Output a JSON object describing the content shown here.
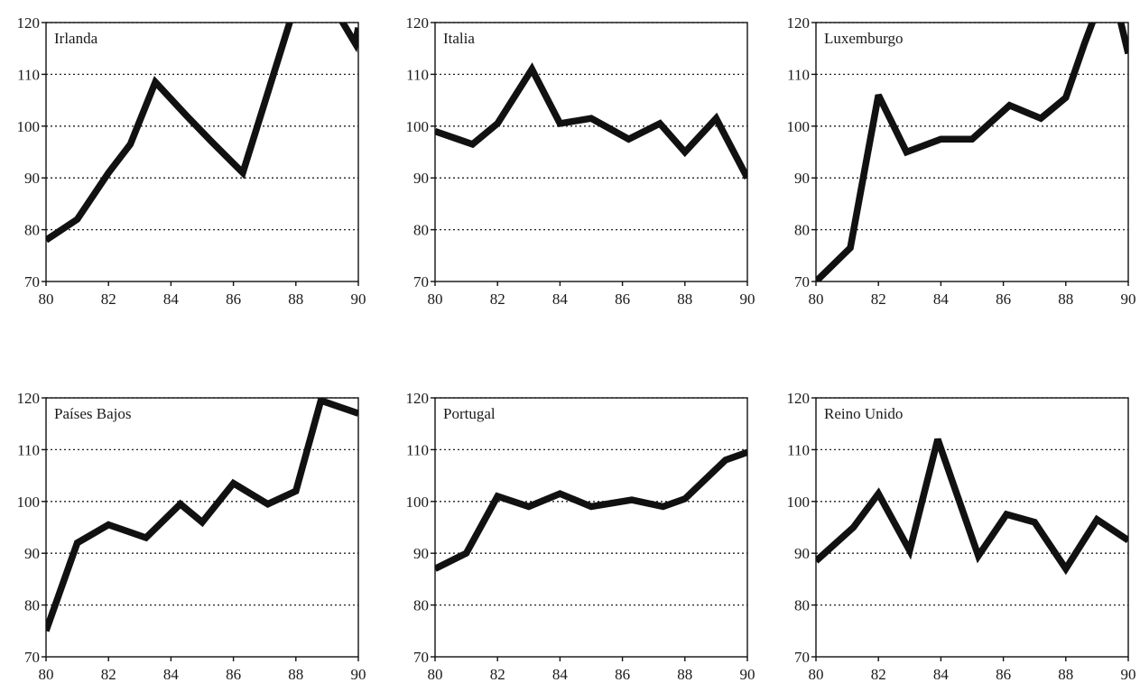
{
  "chart_data": [
    {
      "type": "line",
      "title": "Irlanda",
      "x": [
        80,
        81,
        82,
        82.7,
        83.5,
        84.5,
        85.3,
        86.3,
        87,
        87.8,
        88.3,
        89,
        89.5,
        89.9,
        90
      ],
      "values": [
        78,
        82,
        91,
        96.5,
        108.5,
        102,
        97,
        91,
        104.5,
        120,
        125,
        125,
        120,
        116,
        119
      ],
      "xticks": [
        "80",
        "82",
        "84",
        "86",
        "88",
        "90"
      ],
      "yticks": [
        "70",
        "80",
        "90",
        "100",
        "110",
        "120"
      ],
      "xlim": [
        80,
        90
      ],
      "ylim": [
        70,
        120
      ],
      "grid": "dotted-horizontal"
    },
    {
      "type": "line",
      "title": "Italia",
      "x": [
        80,
        81.2,
        82,
        83.1,
        84,
        85,
        86.2,
        87.2,
        88,
        89,
        90
      ],
      "values": [
        99,
        96.5,
        100.5,
        111,
        100.5,
        101.5,
        97.5,
        100.5,
        95,
        101.5,
        90
      ],
      "xticks": [
        "80",
        "82",
        "84",
        "86",
        "88",
        "90"
      ],
      "yticks": [
        "70",
        "80",
        "90",
        "100",
        "110",
        "120"
      ],
      "xlim": [
        80,
        90
      ],
      "ylim": [
        70,
        120
      ],
      "grid": "dotted-horizontal"
    },
    {
      "type": "line",
      "title": "Luxemburgo",
      "x": [
        80,
        81.1,
        82,
        82.9,
        84,
        85,
        86.2,
        87.2,
        88,
        88.6,
        89.1,
        89.6,
        90
      ],
      "values": [
        70,
        76.5,
        106,
        95,
        97.5,
        97.5,
        104,
        101.5,
        105.5,
        116,
        124,
        124,
        114
      ],
      "xticks": [
        "80",
        "82",
        "84",
        "86",
        "88",
        "90"
      ],
      "yticks": [
        "70",
        "80",
        "90",
        "100",
        "110",
        "120"
      ],
      "xlim": [
        80,
        90
      ],
      "ylim": [
        70,
        120
      ],
      "grid": "dotted-horizontal"
    },
    {
      "type": "line",
      "title": "Países Bajos",
      "x": [
        80,
        81,
        82,
        83.2,
        84.3,
        85,
        86,
        87.1,
        88,
        88.8,
        90
      ],
      "values": [
        75,
        92,
        95.5,
        93,
        99.5,
        96,
        103.5,
        99.5,
        102,
        119.5,
        117
      ],
      "xticks": [
        "80",
        "82",
        "84",
        "86",
        "88",
        "90"
      ],
      "yticks": [
        "70",
        "80",
        "90",
        "100",
        "110",
        "120"
      ],
      "xlim": [
        80,
        90
      ],
      "ylim": [
        70,
        120
      ],
      "grid": "dotted-horizontal"
    },
    {
      "type": "line",
      "title": "Portugal",
      "x": [
        80,
        81,
        82,
        83,
        84,
        85,
        86.3,
        87.3,
        88,
        89.3,
        90
      ],
      "values": [
        87,
        90,
        101,
        99,
        101.5,
        99,
        100.3,
        99,
        100.5,
        108,
        109.5
      ],
      "xticks": [
        "80",
        "82",
        "84",
        "86",
        "88",
        "90"
      ],
      "yticks": [
        "70",
        "80",
        "90",
        "100",
        "110",
        "120"
      ],
      "xlim": [
        80,
        90
      ],
      "ylim": [
        70,
        120
      ],
      "grid": "dotted-horizontal"
    },
    {
      "type": "line",
      "title": "Reino Unido",
      "x": [
        80,
        81.2,
        82,
        83,
        83.9,
        85.2,
        86.1,
        87,
        88,
        89,
        90
      ],
      "values": [
        88.5,
        95,
        101.5,
        90.5,
        112,
        89.5,
        97.5,
        96,
        87,
        96.5,
        92.5
      ],
      "xticks": [
        "80",
        "82",
        "84",
        "86",
        "88",
        "90"
      ],
      "yticks": [
        "70",
        "80",
        "90",
        "100",
        "110",
        "120"
      ],
      "xlim": [
        80,
        90
      ],
      "ylim": [
        70,
        120
      ],
      "grid": "dotted-horizontal"
    }
  ]
}
